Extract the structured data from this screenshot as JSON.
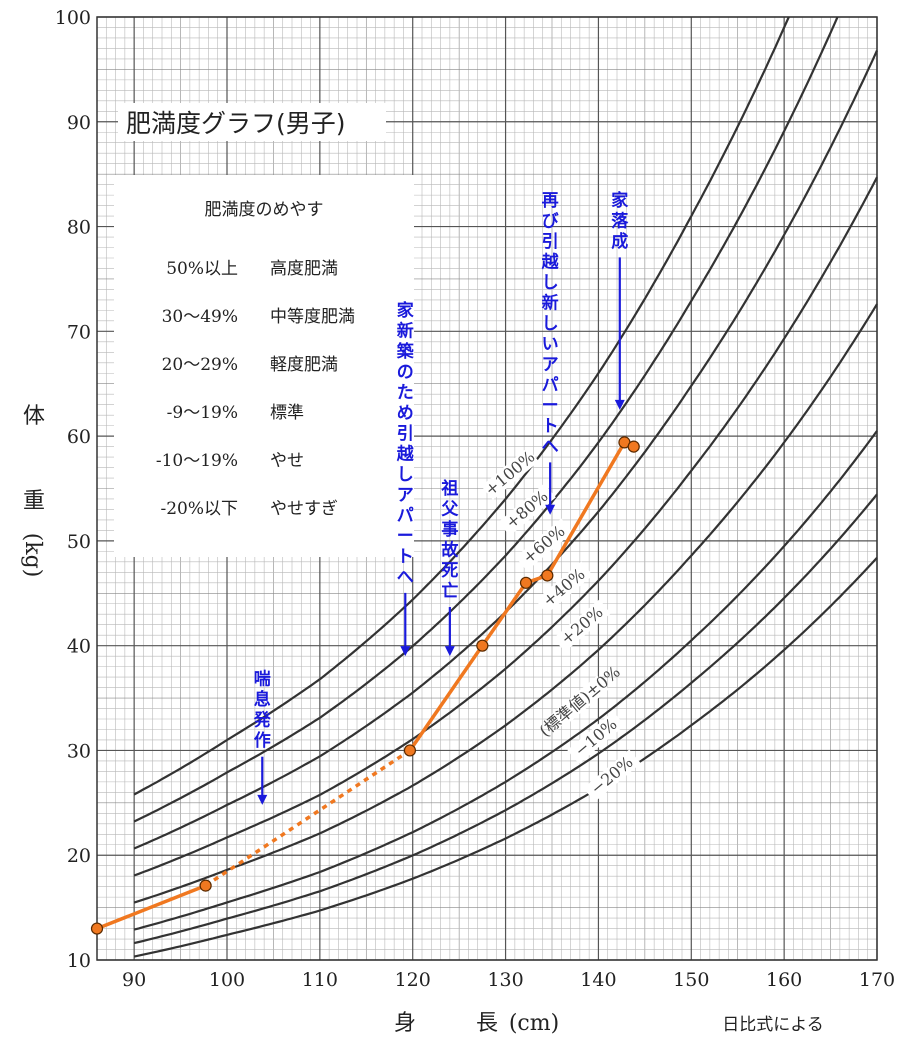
{
  "chart_data": {
    "type": "line",
    "title": "肥満度グラフ(男子)",
    "xlabel_chars": [
      "身",
      "長",
      "(cm)"
    ],
    "ylabel_chars": [
      "体",
      "重",
      "(kg)"
    ],
    "source_note": "日比式による",
    "xlim": [
      86,
      170
    ],
    "ylim": [
      10,
      100
    ],
    "x_ticks": [
      90,
      100,
      110,
      120,
      130,
      140,
      150,
      160,
      170
    ],
    "y_ticks": [
      10,
      20,
      30,
      40,
      50,
      60,
      70,
      80,
      90,
      100
    ],
    "grid": true,
    "legend_box": {
      "placement": "upper-left",
      "heading": "肥満度のめやす",
      "rows": [
        {
          "range": "50%以上",
          "category": "高度肥満"
        },
        {
          "range": "30〜49%",
          "category": "中等度肥満"
        },
        {
          "range": "20〜29%",
          "category": "軽度肥満"
        },
        {
          "range": "-9〜19%",
          "category": "標準"
        },
        {
          "range": "-10〜19%",
          "category": "やせ"
        },
        {
          "range": "-20%以下",
          "category": "やせすぎ"
        }
      ]
    },
    "standard_curve": {
      "name": "(標準値)±0%",
      "x": [
        90,
        100,
        110,
        120,
        130,
        140,
        150,
        160,
        170
      ],
      "y": [
        12.9,
        15.5,
        18.4,
        22.2,
        27.0,
        33.0,
        40.5,
        49.5,
        60.5
      ]
    },
    "reference_curves": [
      {
        "name": "+100%",
        "factor": 2.0,
        "label": "+100%"
      },
      {
        "name": "+80%",
        "factor": 1.8,
        "label": "+80%"
      },
      {
        "name": "+60%",
        "factor": 1.6,
        "label": "+60%"
      },
      {
        "name": "+40%",
        "factor": 1.4,
        "label": "+40%"
      },
      {
        "name": "+20%",
        "factor": 1.2,
        "label": "+20%"
      },
      {
        "name": "±0%",
        "factor": 1.0,
        "label": "(標準値)±0%"
      },
      {
        "name": "-10%",
        "factor": 0.9,
        "label": "−10%"
      },
      {
        "name": "-20%",
        "factor": 0.8,
        "label": "−20%"
      }
    ],
    "series": [
      {
        "name": "",
        "color": "#f07820",
        "points": [
          {
            "x": 86.0,
            "y": 13.0
          },
          {
            "x": 97.7,
            "y": 17.1
          },
          {
            "x": 119.7,
            "y": 30.0
          },
          {
            "x": 127.5,
            "y": 40.0
          },
          {
            "x": 132.2,
            "y": 46.0
          },
          {
            "x": 134.5,
            "y": 46.7
          },
          {
            "x": 142.8,
            "y": 59.4
          },
          {
            "x": 143.8,
            "y": 59.0
          }
        ],
        "dotted_segments": [
          [
            1,
            2
          ]
        ]
      }
    ],
    "annotations": [
      {
        "text": "喘息発作",
        "x": 103.8,
        "arrow_to_y": 24.8,
        "top_y": 37.8,
        "color": "#1a1adb"
      },
      {
        "text": "家新築のため引越しアパートへ",
        "x": 119.2,
        "arrow_to_y": 39.0,
        "top_y": 73.0,
        "color": "#1a1adb"
      },
      {
        "text": "祖父事故死亡",
        "x": 124.0,
        "arrow_to_y": 39.0,
        "top_y": 56.0,
        "color": "#1a1adb"
      },
      {
        "text": "再び引越し新しいアパートへ",
        "x": 134.8,
        "arrow_to_y": 52.5,
        "top_y": 83.5,
        "color": "#1a1adb"
      },
      {
        "text": "家落成",
        "x": 142.3,
        "arrow_to_y": 62.5,
        "top_y": 83.5,
        "color": "#1a1adb"
      }
    ]
  }
}
